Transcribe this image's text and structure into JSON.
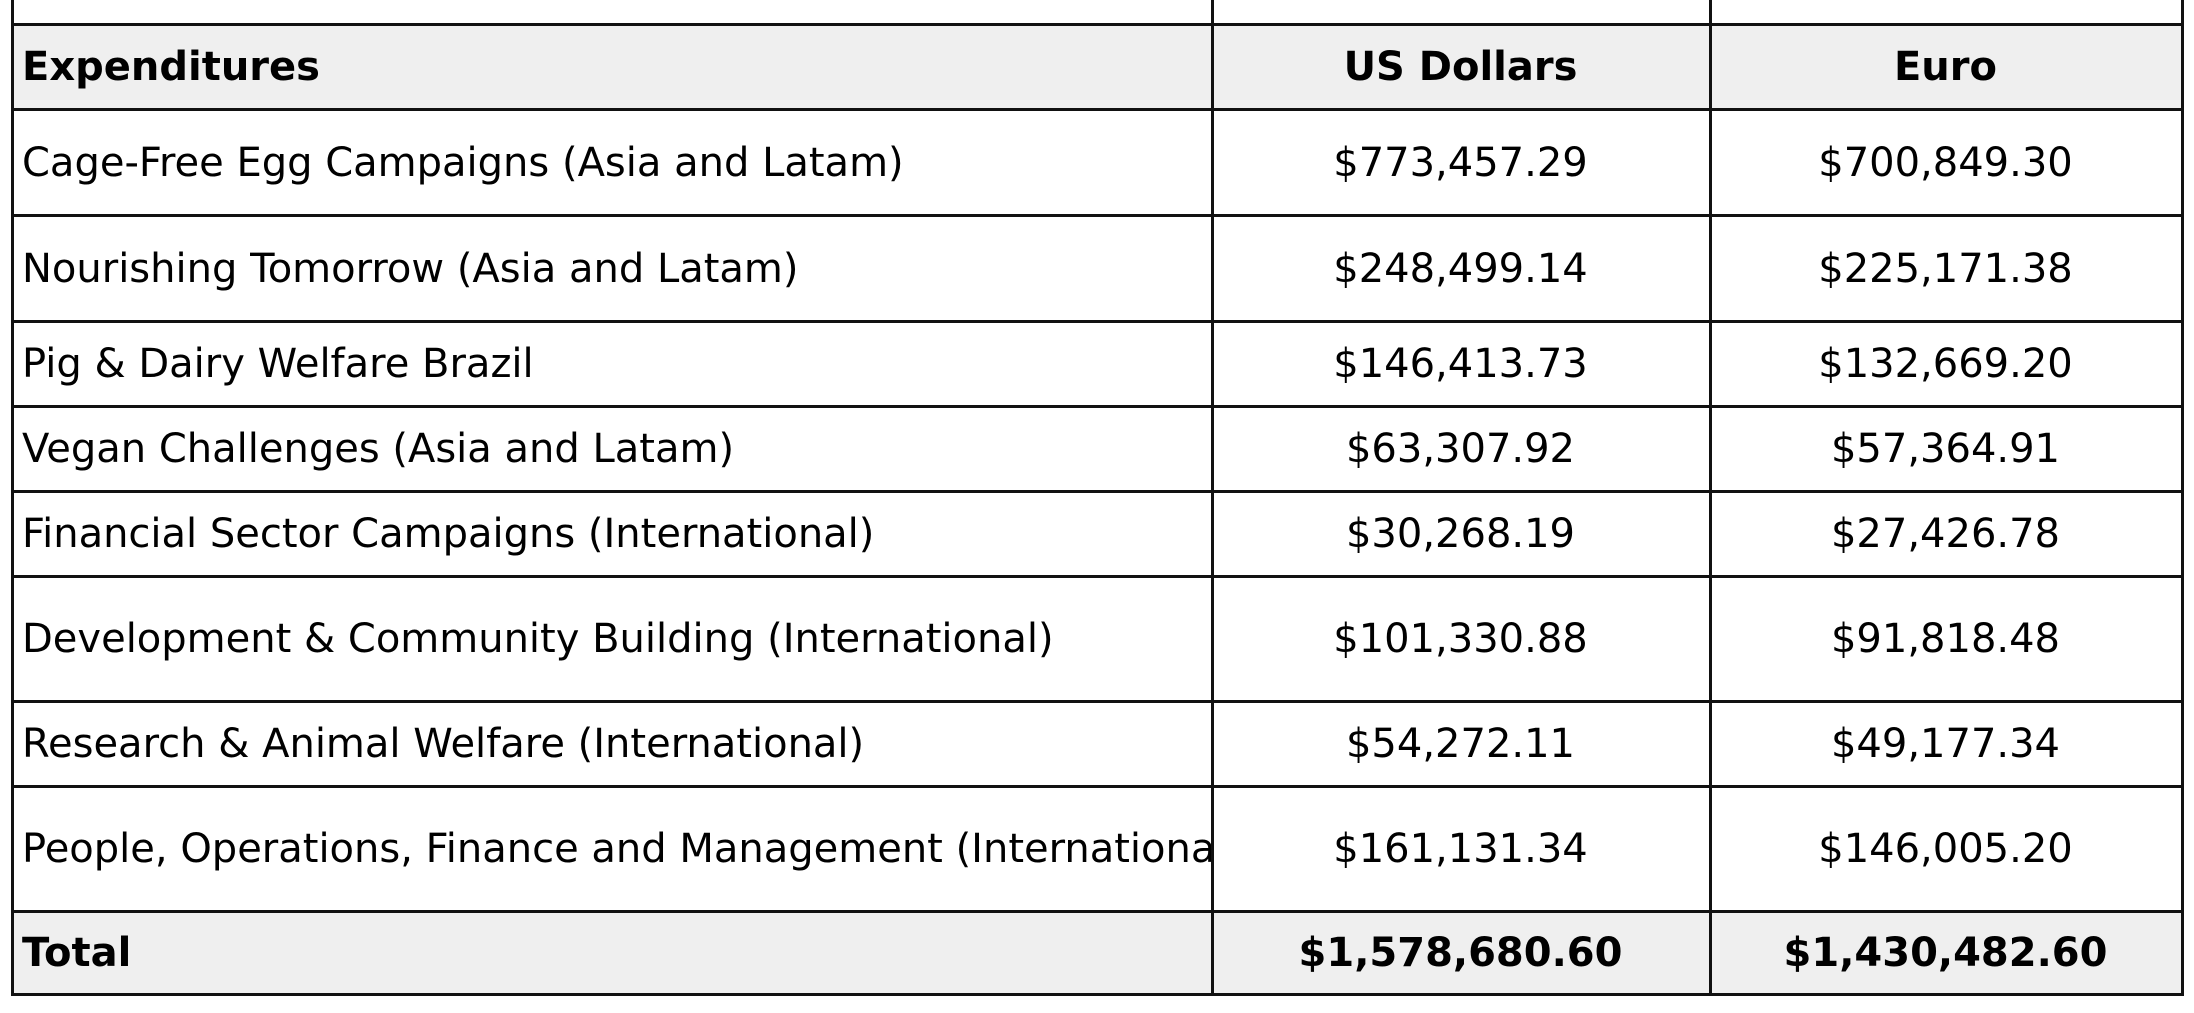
{
  "table": {
    "headers": {
      "category": "Expenditures",
      "usd": "US Dollars",
      "eur": "Euro"
    },
    "rows": [
      {
        "category": "Cage-Free Egg Campaigns (Asia and Latam)",
        "usd": "$773,457.29",
        "eur": "$700,849.30"
      },
      {
        "category": "Nourishing Tomorrow (Asia and Latam)",
        "usd": "$248,499.14",
        "eur": "$225,171.38"
      },
      {
        "category": "Pig & Dairy Welfare Brazil",
        "usd": "$146,413.73",
        "eur": "$132,669.20"
      },
      {
        "category": "Vegan Challenges (Asia and Latam)",
        "usd": "$63,307.92",
        "eur": "$57,364.91"
      },
      {
        "category": "Financial Sector Campaigns (International)",
        "usd": "$30,268.19",
        "eur": "$27,426.78"
      },
      {
        "category": "Development & Community Building (International)",
        "usd": "$101,330.88",
        "eur": "$91,818.48"
      },
      {
        "category": "Research & Animal Welfare (International)",
        "usd": "$54,272.11",
        "eur": "$49,177.34"
      },
      {
        "category": "People, Operations, Finance and Management (International)",
        "usd": "$161,131.34",
        "eur": "$146,005.20"
      }
    ],
    "total": {
      "label": "Total",
      "usd": "$1,578,680.60",
      "eur": "$1,430,482.60"
    }
  }
}
